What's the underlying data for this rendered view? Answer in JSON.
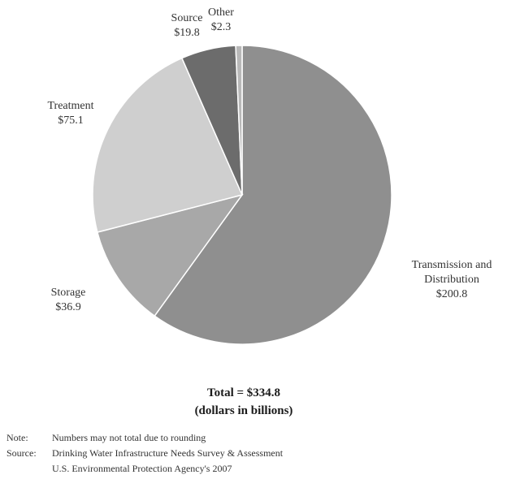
{
  "chart_data": {
    "type": "pie",
    "slices": [
      {
        "label_lines": [
          "Transmission and",
          "Distribution"
        ],
        "value_text": "$200.8",
        "value": 200.8,
        "color": "#8f8f8f"
      },
      {
        "label_lines": [
          "Storage"
        ],
        "value_text": "$36.9",
        "value": 36.9,
        "color": "#a8a8a8"
      },
      {
        "label_lines": [
          "Treatment"
        ],
        "value_text": "$75.1",
        "value": 75.1,
        "color": "#cfcfcf"
      },
      {
        "label_lines": [
          "Source"
        ],
        "value_text": "$19.8",
        "value": 19.8,
        "color": "#6c6c6c"
      },
      {
        "label_lines": [
          "Other"
        ],
        "value_text": "$2.3",
        "value": 2.3,
        "color": "#b8b8b8"
      }
    ],
    "start_angle_deg": 0,
    "direction": "clockwise",
    "slice_border_color": "#ffffff",
    "total_line": "Total = $334.8",
    "units_line": "(dollars in billions)"
  },
  "notes": {
    "note_label": "Note:",
    "note_text": "Numbers may not total due to rounding",
    "source_label": "Source:",
    "source_text_1": "Drinking Water Infrastructure Needs Survey & Assessment",
    "source_text_2": "U.S. Environmental Protection Agency's 2007"
  }
}
